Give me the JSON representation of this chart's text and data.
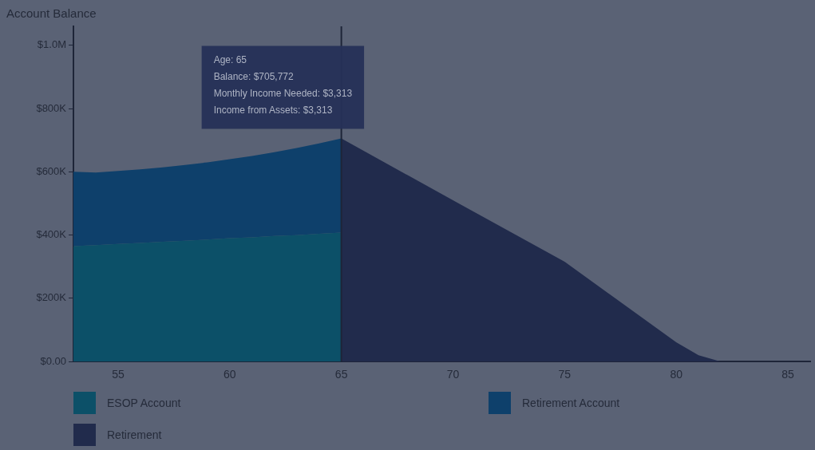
{
  "chart_data": {
    "type": "area",
    "ylabel": "Account Balance",
    "stacked": true,
    "legend": "bottom",
    "x": [
      53,
      54,
      55,
      56,
      57,
      58,
      59,
      60,
      61,
      62,
      63,
      64,
      65,
      65,
      70,
      75,
      80,
      81,
      82
    ],
    "series": [
      {
        "name": "ESOP Account",
        "color": "#0c5068",
        "values": [
          365000,
          368000,
          372000,
          375000,
          379000,
          382000,
          386000,
          390000,
          393000,
          397000,
          400000,
          404000,
          408000,
          null,
          null,
          null,
          null,
          null,
          null
        ]
      },
      {
        "name": "Retirement Account",
        "color": "#0e406b",
        "values": [
          235000,
          230000,
          231000,
          233000,
          235000,
          240000,
          244000,
          250000,
          257000,
          265000,
          275000,
          286000,
          297772,
          null,
          null,
          null,
          null,
          null,
          null
        ]
      },
      {
        "name": "Retirement",
        "color": "#212b4c",
        "values": [
          null,
          null,
          null,
          null,
          null,
          null,
          null,
          null,
          null,
          null,
          null,
          null,
          null,
          705772,
          510000,
          316000,
          61000,
          20000,
          0
        ]
      }
    ],
    "xlim": [
      53,
      86
    ],
    "xticks": [
      55,
      60,
      65,
      70,
      75,
      80,
      85
    ],
    "ylim": [
      0,
      1060000
    ],
    "yticks": [
      {
        "value": 0,
        "label": "$0.00"
      },
      {
        "value": 200000,
        "label": "$200K"
      },
      {
        "value": 400000,
        "label": "$400K"
      },
      {
        "value": 600000,
        "label": "$600K"
      },
      {
        "value": 800000,
        "label": "$800K"
      },
      {
        "value": 1000000,
        "label": "$1.0M"
      }
    ],
    "ref_lines": [
      {
        "axis": "x",
        "value": 65,
        "color": "#1e2538"
      }
    ],
    "annotations": [
      {
        "text": "Age: 65\nBalance: $705,772\nMonthly Income Needed: $3,313\nIncome from Assets: $3,313",
        "x": 65,
        "y": 705772
      }
    ]
  }
}
